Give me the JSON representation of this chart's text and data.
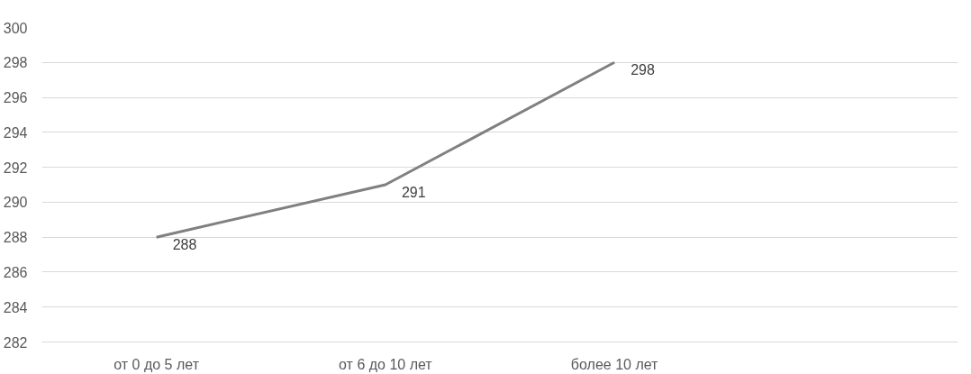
{
  "chart_data": {
    "type": "line",
    "categories": [
      "от 0 до 5 лет",
      "от 6 до 10 лет",
      "более 10 лет",
      null
    ],
    "values": [
      288,
      291,
      298,
      null
    ],
    "color": "#808080",
    "ylim": [
      282,
      300
    ],
    "yticks": [
      282,
      284,
      286,
      288,
      290,
      292,
      294,
      296,
      298,
      300
    ],
    "grid": "y",
    "data_labels": true,
    "line_style": "solid"
  }
}
